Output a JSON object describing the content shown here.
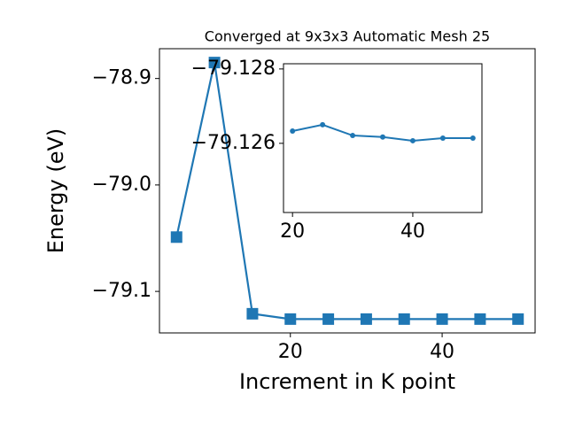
{
  "chart_data": [
    {
      "type": "line",
      "title": "Converged at 9x3x3 Automatic Mesh 25",
      "xlabel": "Increment in K point",
      "ylabel": "Energy (eV)",
      "x": [
        5,
        10,
        15,
        20,
        25,
        30,
        35,
        40,
        45,
        50
      ],
      "series": [
        {
          "color": "#1f77b4",
          "marker": "square",
          "values": [
            -79.049,
            -78.885,
            -79.121,
            -79.126,
            -79.126,
            -79.126,
            -79.126,
            -79.126,
            -79.126,
            -79.126
          ]
        }
      ],
      "xlim": [
        2.75,
        52.25
      ],
      "ylim": [
        -79.139,
        -78.872
      ],
      "xticks": [
        20,
        40
      ],
      "yticks": [
        {
          "value": -78.9,
          "label": "−78.9"
        },
        {
          "value": -79.0,
          "label": "−79.0"
        },
        {
          "value": -79.1,
          "label": "−79.1"
        }
      ]
    },
    {
      "type": "line",
      "x": [
        20,
        25,
        30,
        35,
        40,
        45,
        50
      ],
      "series": [
        {
          "color": "#1f77b4",
          "marker": "circle",
          "values": [
            -79.12633,
            -79.1265,
            -79.12621,
            -79.12617,
            -79.12607,
            -79.12614,
            -79.12614
          ]
        }
      ],
      "xlim": [
        18.5,
        51.5
      ],
      "ylim": [
        -79.12414,
        -79.12814
      ],
      "xticks": [
        20,
        40
      ],
      "yticks": [
        {
          "value": -79.128,
          "label": "−79.128"
        },
        {
          "value": -79.126,
          "label": "−79.126"
        }
      ]
    }
  ]
}
